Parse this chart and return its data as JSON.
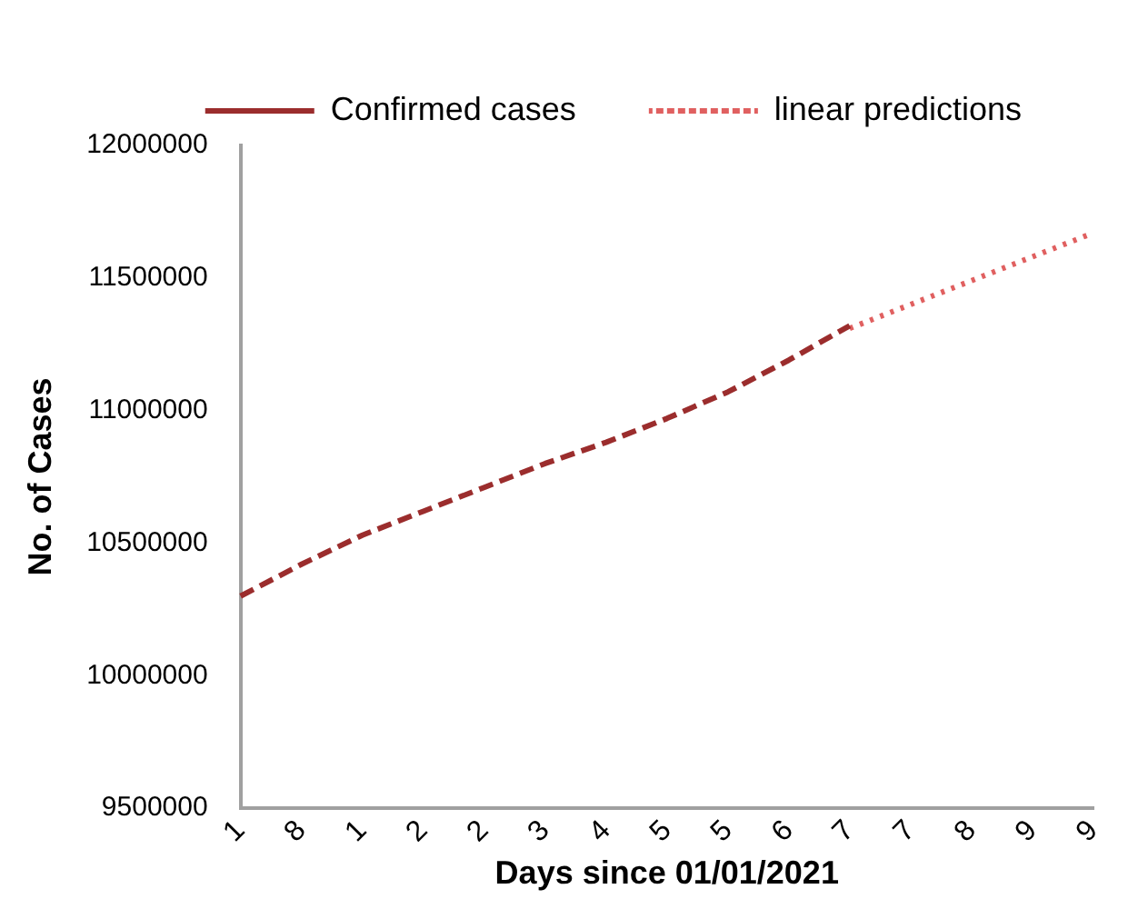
{
  "chart_data": {
    "type": "line",
    "xlabel": "Days since 01/01/2021",
    "ylabel": "No. of Cases",
    "categories": [
      "1",
      "8",
      "1",
      "2",
      "2",
      "3",
      "4",
      "5",
      "5",
      "6",
      "7",
      "7",
      "8",
      "9",
      "9"
    ],
    "ylim": [
      9500000,
      12000000
    ],
    "yticks": [
      9500000,
      10000000,
      10500000,
      11000000,
      11500000,
      12000000
    ],
    "grid": false,
    "legend": "top",
    "series": [
      {
        "name": "Confirmed cases",
        "color": "#9b2d2d",
        "line_style": "dashed",
        "values": [
          10300000,
          10420000,
          10530000,
          10620000,
          10710000,
          10800000,
          10880000,
          10970000,
          11070000,
          11190000,
          11320000,
          null,
          null,
          null,
          null
        ]
      },
      {
        "name": "linear predictions",
        "color": "#e06060",
        "line_style": "dotted",
        "values": [
          null,
          null,
          null,
          null,
          null,
          null,
          null,
          null,
          null,
          null,
          11310000,
          11400000,
          11490000,
          11580000,
          11670000
        ]
      }
    ]
  }
}
